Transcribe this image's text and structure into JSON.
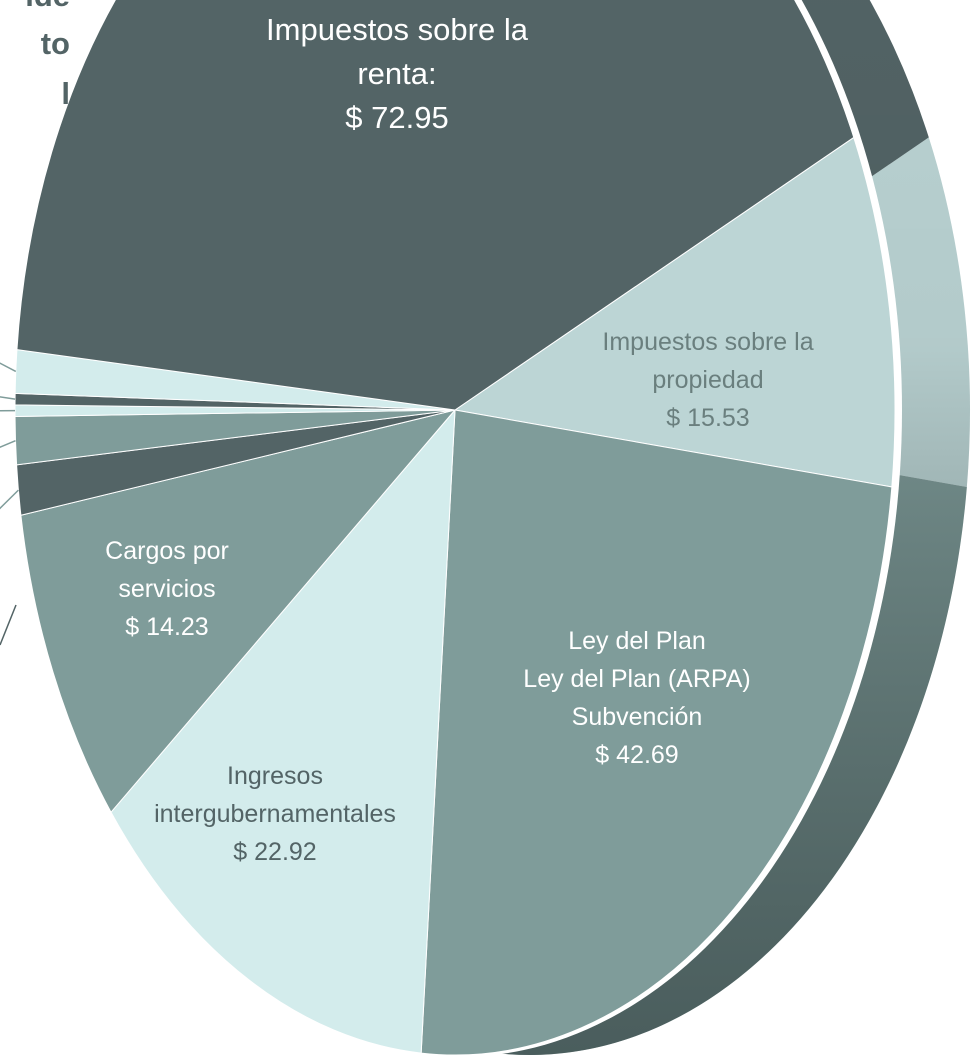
{
  "chart_data": {
    "type": "pie",
    "clipped_title_lines": [
      "ide",
      "to",
      "l"
    ],
    "categories": [
      "Impuestos sobre la\npropiedad",
      "Ley del Plan\nLey del Plan (ARPA)\nSubvención",
      "Ingresos\nintergubernamentales",
      "Cargos por\nservicios",
      null,
      null,
      null,
      null,
      null,
      "Impuestos sobre la\nrenta:"
    ],
    "values": [
      15.53,
      42.69,
      22.92,
      14.23,
      2.2,
      2.1,
      0.5,
      0.5,
      1.9,
      72.95
    ],
    "value_labels": [
      "$ 15.53",
      "$ 42.69",
      "$ 22.92",
      "$ 14.23",
      null,
      null,
      null,
      null,
      null,
      "$ 72.95"
    ],
    "colors": [
      "#bcd5d5",
      "#7f9c9a",
      "#d3ecec",
      "#7f9c9a",
      "#536466",
      "#7f9c9a",
      "#d3ecec",
      "#536466",
      "#d3ecec",
      "#536466"
    ]
  }
}
